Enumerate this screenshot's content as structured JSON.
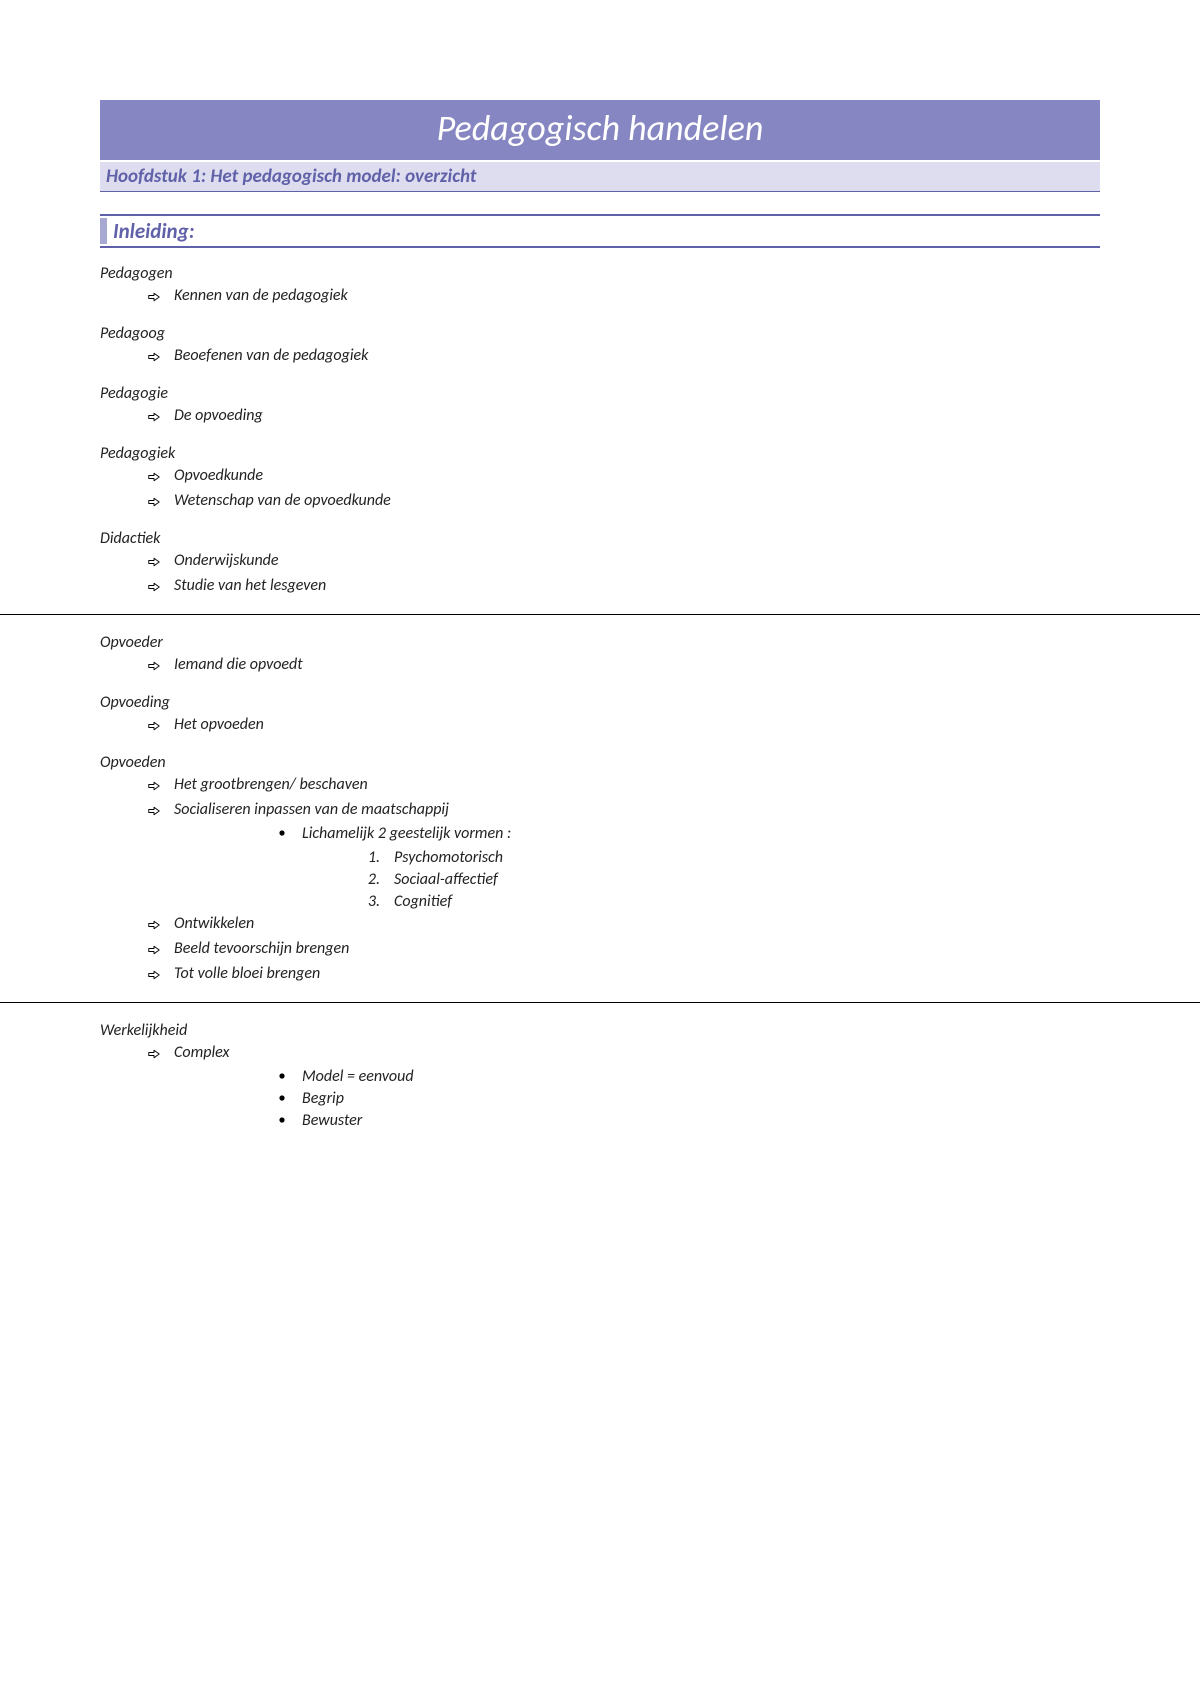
{
  "colors": {
    "title_bg": "#8687C2",
    "title_text": "#ffffff",
    "chapter_bg": "#DDDDEF",
    "chapter_text": "#6061A8",
    "chapter_border": "#6061A8",
    "section_border": "#6061A8",
    "section_leftbar": "#A8A9D3",
    "section_text": "#6061A8",
    "section_bg": "#ffffff",
    "body_text": "#222222",
    "hr": "#000000"
  },
  "typography": {
    "title_fontsize": 36,
    "chapter_fontsize": 19,
    "section_fontsize": 21,
    "body_fontsize": 16,
    "font_family": "Calibri",
    "all_italic": true
  },
  "title": "Pedagogisch handelen",
  "chapter": "Hoofdstuk 1: Het pedagogisch model: overzicht",
  "section": "Inleiding:",
  "groups": [
    {
      "terms": [
        {
          "label": "Pedagogen",
          "items": [
            "Kennen van de pedagogiek"
          ]
        },
        {
          "label": "Pedagoog",
          "items": [
            "Beoefenen van de pedagogiek"
          ]
        }
      ]
    },
    {
      "terms": [
        {
          "label": "Pedagogie",
          "items": [
            "De opvoeding"
          ]
        }
      ]
    },
    {
      "terms": [
        {
          "label": "Pedagogiek",
          "items": [
            "Opvoedkunde",
            "Wetenschap van de opvoedkunde"
          ]
        }
      ]
    },
    {
      "terms": [
        {
          "label": "Didactiek",
          "items": [
            "Onderwijskunde",
            "Studie van het lesgeven"
          ]
        }
      ],
      "hr_after": true
    },
    {
      "terms": [
        {
          "label": "Opvoeder",
          "items": [
            "Iemand die opvoedt"
          ]
        }
      ]
    },
    {
      "terms": [
        {
          "label": "Opvoeding",
          "items": [
            "Het opvoeden"
          ]
        }
      ]
    },
    {
      "terms": [
        {
          "label": "Opvoeden",
          "items": [
            "Het grootbrengen/ beschaven",
            {
              "text": "Socialiseren inpassen van de maatschappij",
              "bullets": [
                {
                  "text": "Lichamelijk 2 geestelijk vormen :",
                  "numbered": [
                    "Psychomotorisch",
                    "Sociaal-affectief",
                    "Cognitief"
                  ]
                }
              ]
            },
            "Ontwikkelen",
            "Beeld tevoorschijn brengen",
            "Tot volle bloei brengen"
          ]
        }
      ],
      "hr_after": true
    },
    {
      "terms": [
        {
          "label": "Werkelijkheid",
          "items": [
            {
              "text": "Complex",
              "bullets": [
                {
                  "text": "Model = eenvoud"
                },
                {
                  "text": "Begrip"
                },
                {
                  "text": "Bewuster"
                }
              ]
            }
          ]
        }
      ]
    }
  ]
}
